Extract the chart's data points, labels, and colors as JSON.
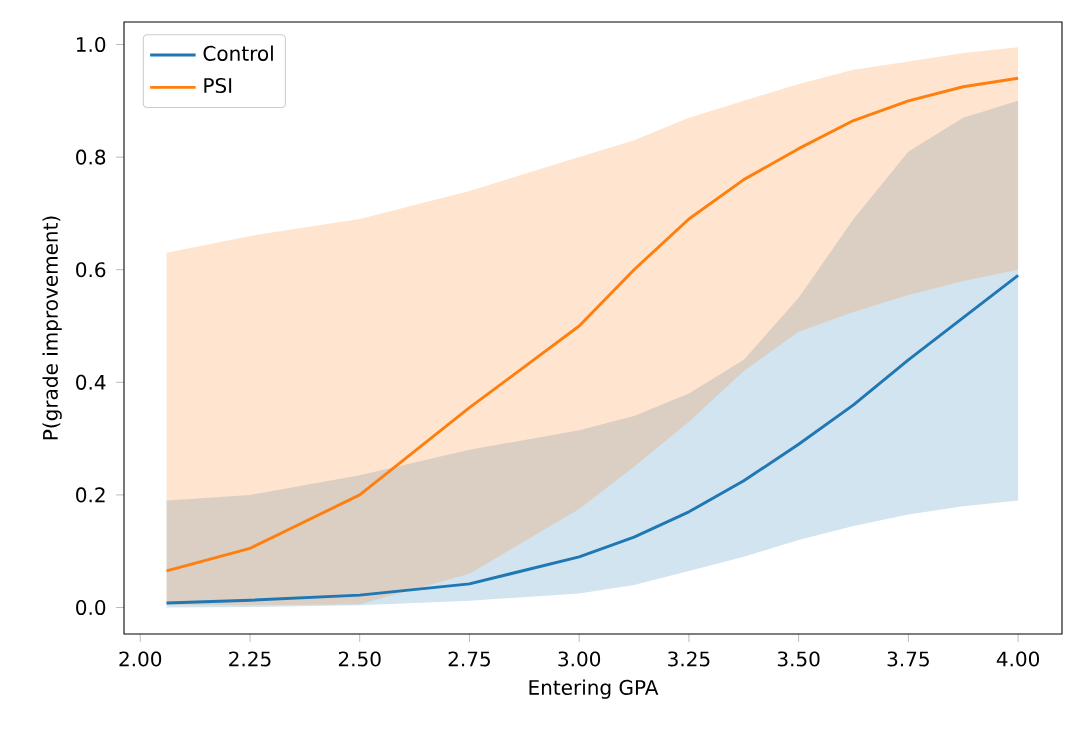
{
  "chart_data": {
    "type": "line",
    "xlabel": "Entering GPA",
    "ylabel": "P(grade improvement)",
    "xlim": [
      1.963,
      4.1
    ],
    "ylim": [
      -0.047,
      1.04
    ],
    "xticks": [
      {
        "value": 2,
        "label": "2.00"
      },
      {
        "value": 2.25,
        "label": "2.25"
      },
      {
        "value": 2.5,
        "label": "2.50"
      },
      {
        "value": 2.75,
        "label": "2.75"
      },
      {
        "value": 3,
        "label": "3.00"
      },
      {
        "value": 3.25,
        "label": "3.25"
      },
      {
        "value": 3.5,
        "label": "3.50"
      },
      {
        "value": 3.75,
        "label": "3.75"
      },
      {
        "value": 4,
        "label": "4.00"
      }
    ],
    "yticks": [
      {
        "value": 0,
        "label": "0.0"
      },
      {
        "value": 0.2,
        "label": "0.2"
      },
      {
        "value": 0.4,
        "label": "0.4"
      },
      {
        "value": 0.6,
        "label": "0.6"
      },
      {
        "value": 0.8,
        "label": "0.8"
      },
      {
        "value": 1,
        "label": "1.0"
      }
    ],
    "x": [
      2.06,
      2.25,
      2.5,
      2.75,
      3.0,
      3.125,
      3.25,
      3.375,
      3.5,
      3.625,
      3.75,
      3.875,
      4.0
    ],
    "series": [
      {
        "name": "Control",
        "color": "#1f77b4",
        "values": [
          0.008,
          0.013,
          0.022,
          0.042,
          0.09,
          0.125,
          0.17,
          0.225,
          0.29,
          0.36,
          0.44,
          0.515,
          0.59
        ],
        "lower": [
          0.0,
          0.001,
          0.004,
          0.012,
          0.025,
          0.04,
          0.065,
          0.09,
          0.12,
          0.145,
          0.165,
          0.18,
          0.19
        ],
        "upper": [
          0.19,
          0.2,
          0.235,
          0.28,
          0.315,
          0.34,
          0.38,
          0.44,
          0.55,
          0.69,
          0.81,
          0.87,
          0.9
        ]
      },
      {
        "name": "PSI",
        "color": "#ff7f0e",
        "values": [
          0.065,
          0.105,
          0.2,
          0.355,
          0.5,
          0.6,
          0.69,
          0.76,
          0.815,
          0.865,
          0.9,
          0.925,
          0.94
        ],
        "lower": [
          0.005,
          0.004,
          0.006,
          0.06,
          0.175,
          0.25,
          0.33,
          0.42,
          0.49,
          0.525,
          0.555,
          0.58,
          0.6
        ],
        "upper": [
          0.63,
          0.66,
          0.69,
          0.74,
          0.8,
          0.83,
          0.87,
          0.9,
          0.93,
          0.955,
          0.97,
          0.985,
          0.995
        ]
      }
    ],
    "legend": "top left",
    "marker": "none",
    "line_style": "solid",
    "grid": false
  }
}
